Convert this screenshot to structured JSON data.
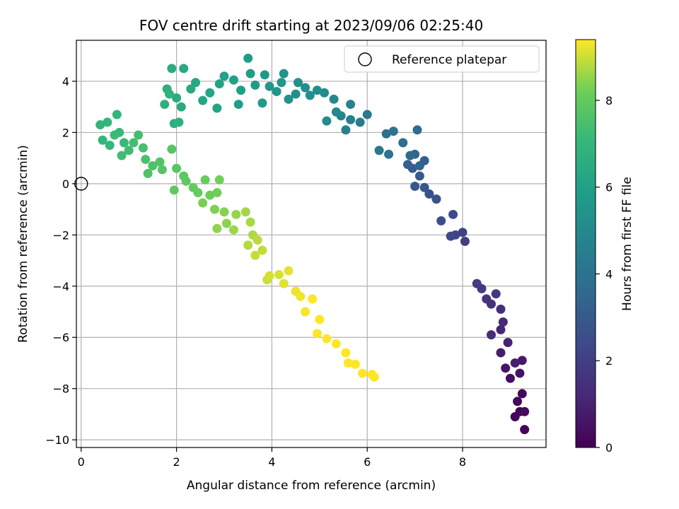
{
  "chart_data": {
    "type": "scatter",
    "title": "FOV centre drift starting at 2023/09/06 02:25:40",
    "xlabel": "Angular distance from reference (arcmin)",
    "ylabel": "Rotation from reference (arcmin)",
    "xlim": [
      -0.1,
      9.75
    ],
    "ylim": [
      -10.3,
      5.6
    ],
    "xticks": [
      0,
      2,
      4,
      6,
      8
    ],
    "yticks": [
      -10,
      -8,
      -6,
      -4,
      -2,
      0,
      2,
      4
    ],
    "grid": true,
    "colormap": "viridis",
    "colorbar": {
      "label": "Hours from first FF file",
      "range": [
        0,
        9.4
      ],
      "ticks": [
        0,
        2,
        4,
        6,
        8
      ]
    },
    "legend": {
      "placement": "top-right",
      "entries": [
        "Reference platepar"
      ]
    },
    "reference_point": {
      "x": 0,
      "y": 0
    },
    "series": [
      {
        "color_by": "hours",
        "points": [
          [
            9.3,
            -9.6,
            0.05
          ],
          [
            9.2,
            -8.9,
            0.1
          ],
          [
            9.1,
            -9.1,
            0.15
          ],
          [
            9.25,
            -8.2,
            0.2
          ],
          [
            9.15,
            -8.5,
            0.25
          ],
          [
            9.3,
            -8.9,
            0.3
          ],
          [
            9.0,
            -7.6,
            0.4
          ],
          [
            9.2,
            -7.4,
            0.5
          ],
          [
            8.9,
            -7.2,
            0.6
          ],
          [
            9.25,
            -6.9,
            0.7
          ],
          [
            8.8,
            -6.6,
            0.8
          ],
          [
            9.1,
            -7.0,
            0.9
          ],
          [
            8.95,
            -6.2,
            1.0
          ],
          [
            8.8,
            -5.7,
            1.1
          ],
          [
            8.85,
            -5.4,
            1.2
          ],
          [
            8.6,
            -5.9,
            1.3
          ],
          [
            8.8,
            -4.9,
            1.4
          ],
          [
            8.6,
            -4.7,
            1.5
          ],
          [
            8.5,
            -4.5,
            1.6
          ],
          [
            8.7,
            -4.3,
            1.7
          ],
          [
            8.4,
            -4.1,
            1.8
          ],
          [
            8.3,
            -3.9,
            1.9
          ],
          [
            8.05,
            -2.25,
            2.0
          ],
          [
            8.0,
            -1.9,
            2.1
          ],
          [
            7.85,
            -2.0,
            2.2
          ],
          [
            7.75,
            -2.05,
            2.3
          ],
          [
            7.8,
            -1.2,
            2.4
          ],
          [
            7.55,
            -1.45,
            2.5
          ],
          [
            7.3,
            -0.4,
            2.6
          ],
          [
            7.45,
            -0.6,
            2.7
          ],
          [
            7.2,
            -0.15,
            2.8
          ],
          [
            7.0,
            -0.1,
            2.9
          ],
          [
            7.1,
            0.3,
            3.0
          ],
          [
            6.95,
            0.6,
            3.1
          ],
          [
            7.2,
            0.9,
            3.2
          ],
          [
            6.85,
            0.75,
            3.3
          ],
          [
            7.0,
            1.15,
            3.4
          ],
          [
            7.1,
            0.7,
            3.5
          ],
          [
            6.9,
            1.1,
            3.6
          ],
          [
            7.05,
            2.1,
            3.7
          ],
          [
            6.75,
            1.6,
            3.8
          ],
          [
            6.4,
            1.95,
            3.9
          ],
          [
            6.45,
            1.15,
            4.0
          ],
          [
            6.55,
            2.05,
            4.1
          ],
          [
            6.25,
            1.3,
            4.2
          ],
          [
            6.0,
            2.7,
            4.3
          ],
          [
            5.85,
            2.4,
            4.4
          ],
          [
            5.65,
            2.5,
            4.5
          ],
          [
            5.55,
            2.1,
            4.6
          ],
          [
            5.65,
            3.1,
            4.7
          ],
          [
            5.45,
            2.65,
            4.8
          ],
          [
            5.3,
            3.3,
            4.9
          ],
          [
            5.35,
            2.8,
            5.0
          ],
          [
            5.1,
            3.55,
            5.05
          ],
          [
            5.15,
            2.45,
            5.1
          ],
          [
            4.95,
            3.65,
            5.15
          ],
          [
            4.8,
            3.45,
            5.2
          ],
          [
            4.7,
            3.75,
            5.25
          ],
          [
            4.5,
            3.5,
            5.3
          ],
          [
            4.55,
            3.95,
            5.35
          ],
          [
            4.35,
            3.3,
            5.4
          ],
          [
            4.25,
            4.3,
            5.45
          ],
          [
            4.1,
            3.6,
            5.5
          ],
          [
            4.2,
            3.95,
            5.55
          ],
          [
            3.95,
            3.8,
            5.6
          ],
          [
            3.85,
            4.25,
            5.65
          ],
          [
            3.8,
            3.15,
            5.7
          ],
          [
            3.65,
            3.85,
            5.75
          ],
          [
            3.5,
            4.9,
            5.8
          ],
          [
            3.55,
            4.3,
            5.85
          ],
          [
            3.3,
            3.1,
            5.9
          ],
          [
            3.35,
            3.65,
            5.95
          ],
          [
            3.2,
            4.05,
            6.0
          ],
          [
            3.0,
            4.2,
            6.05
          ],
          [
            2.9,
            3.9,
            6.1
          ],
          [
            2.85,
            2.95,
            6.15
          ],
          [
            2.7,
            3.55,
            6.2
          ],
          [
            2.55,
            3.25,
            6.25
          ],
          [
            2.4,
            3.95,
            6.3
          ],
          [
            2.3,
            3.7,
            6.35
          ],
          [
            2.15,
            4.5,
            6.4
          ],
          [
            2.1,
            3.0,
            6.45
          ],
          [
            2.0,
            3.35,
            6.5
          ],
          [
            1.9,
            4.5,
            6.55
          ],
          [
            1.95,
            2.35,
            6.6
          ],
          [
            1.8,
            3.7,
            6.65
          ],
          [
            1.75,
            3.1,
            6.7
          ],
          [
            2.05,
            2.4,
            6.75
          ],
          [
            1.85,
            3.5,
            6.8
          ],
          [
            0.4,
            2.3,
            6.85
          ],
          [
            0.55,
            2.4,
            6.9
          ],
          [
            0.75,
            2.7,
            6.95
          ],
          [
            0.45,
            1.7,
            7.0
          ],
          [
            0.6,
            1.5,
            7.05
          ],
          [
            0.8,
            2.0,
            7.1
          ],
          [
            0.9,
            1.6,
            7.15
          ],
          [
            0.7,
            1.9,
            7.2
          ],
          [
            1.0,
            1.3,
            7.25
          ],
          [
            0.85,
            1.1,
            7.3
          ],
          [
            1.1,
            1.6,
            7.35
          ],
          [
            1.2,
            1.9,
            7.4
          ],
          [
            1.3,
            1.4,
            7.45
          ],
          [
            1.35,
            0.95,
            7.5
          ],
          [
            1.5,
            0.7,
            7.55
          ],
          [
            1.4,
            0.4,
            7.6
          ],
          [
            1.65,
            0.85,
            7.65
          ],
          [
            1.7,
            0.55,
            7.7
          ],
          [
            1.9,
            1.35,
            7.75
          ],
          [
            2.0,
            0.6,
            7.8
          ],
          [
            2.15,
            0.3,
            7.85
          ],
          [
            2.2,
            0.1,
            7.9
          ],
          [
            1.95,
            -0.25,
            7.95
          ],
          [
            2.35,
            -0.15,
            8.0
          ],
          [
            2.45,
            -0.35,
            8.05
          ],
          [
            2.6,
            0.15,
            8.1
          ],
          [
            2.7,
            -0.45,
            8.15
          ],
          [
            2.85,
            -0.35,
            8.2
          ],
          [
            2.9,
            0.15,
            8.25
          ],
          [
            2.55,
            -0.75,
            8.3
          ],
          [
            2.8,
            -1.0,
            8.35
          ],
          [
            3.0,
            -1.1,
            8.4
          ],
          [
            3.05,
            -1.55,
            8.45
          ],
          [
            2.85,
            -1.75,
            8.5
          ],
          [
            3.25,
            -1.2,
            8.55
          ],
          [
            3.2,
            -1.8,
            8.6
          ],
          [
            3.45,
            -1.1,
            8.65
          ],
          [
            3.55,
            -1.5,
            8.7
          ],
          [
            3.6,
            -2.0,
            8.75
          ],
          [
            3.5,
            -2.4,
            8.8
          ],
          [
            3.7,
            -2.2,
            8.85
          ],
          [
            3.8,
            -2.6,
            8.9
          ],
          [
            3.65,
            -2.8,
            8.95
          ],
          [
            3.9,
            -3.75,
            9.0
          ],
          [
            3.95,
            -3.6,
            9.05
          ],
          [
            4.15,
            -3.55,
            9.1
          ],
          [
            4.25,
            -3.9,
            9.15
          ],
          [
            4.35,
            -3.4,
            9.2
          ],
          [
            4.5,
            -4.2,
            9.25
          ],
          [
            4.6,
            -4.4,
            9.3
          ],
          [
            4.7,
            -5.0,
            9.35
          ],
          [
            4.85,
            -4.5,
            9.4
          ],
          [
            5.0,
            -5.3,
            9.45
          ],
          [
            4.95,
            -5.85,
            9.5
          ],
          [
            5.15,
            -6.05,
            9.55
          ],
          [
            5.35,
            -6.25,
            9.6
          ],
          [
            5.55,
            -6.6,
            9.65
          ],
          [
            5.6,
            -7.0,
            9.7
          ],
          [
            5.75,
            -7.05,
            9.75
          ],
          [
            5.9,
            -7.4,
            9.8
          ],
          [
            6.1,
            -7.45,
            9.85
          ],
          [
            6.15,
            -7.55,
            9.9
          ]
        ]
      }
    ]
  }
}
